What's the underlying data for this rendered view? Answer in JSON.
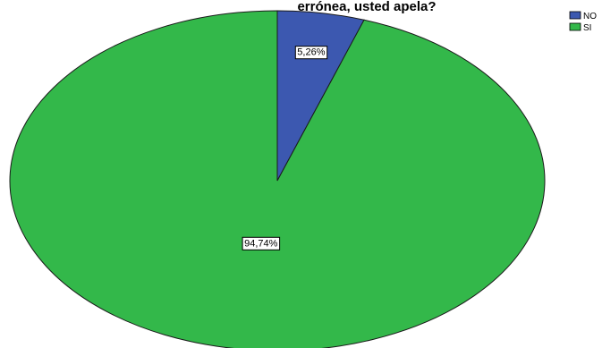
{
  "chart_data": {
    "type": "pie",
    "title": "errónea, usted apela?",
    "categories": [
      "NO",
      "SI"
    ],
    "values": [
      5.26,
      94.74
    ],
    "labels": [
      "5,26%",
      "94,74%"
    ],
    "colors": [
      "#3c58b0",
      "#33b84a"
    ],
    "legend": {
      "placement": "top-right",
      "entries": [
        "NO",
        "SI"
      ]
    }
  }
}
